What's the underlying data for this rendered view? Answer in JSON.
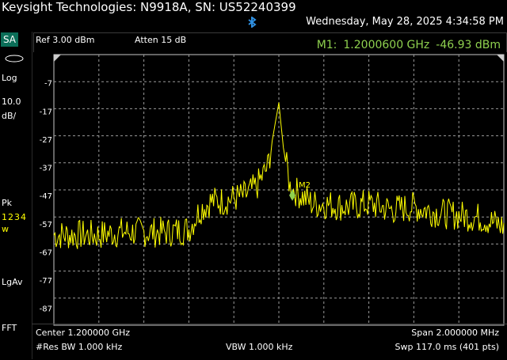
{
  "window": {
    "title": "Keysight Technologies: N9918A, SN: US52240399",
    "datetime": "Wednesday, May 28, 2025 4:34:58 PM"
  },
  "sidebar": {
    "mode": "SA",
    "scale_type": "Log",
    "scale_value": "10.0",
    "scale_unit": "dB/",
    "detector": "Pk",
    "trace_numbers": "1234",
    "trace_state": "w",
    "averaging": "LgAv",
    "sweep_mode": "FFT"
  },
  "status": {
    "ref_level": "Ref 3.00 dBm",
    "attenuation": "Atten 15 dB"
  },
  "marker": {
    "label": "M1:",
    "frequency": "1.2000600 GHz",
    "amplitude": "-46.93 dBm",
    "freq_ghz": 1.20006,
    "amp_dbm": -46.93,
    "tag": "M2"
  },
  "footer": {
    "center": "Center 1.200000 GHz",
    "span": "Span 2.000000 MHz",
    "rbw": "#Res BW 1.000 kHz",
    "vbw": "VBW 1.000 kHz",
    "sweep": "Swp 117.0 ms (401 pts)"
  },
  "colors": {
    "trace": "#ffff00",
    "marker": "#8fd14f",
    "grid": "#9a9a9a",
    "mode_badge": "#0b6e58"
  },
  "chart_data": {
    "type": "line",
    "x_label": "",
    "y_label": "",
    "ylim": [
      -93,
      3
    ],
    "y_ticks": [
      "-7",
      "-17",
      "-27",
      "-37",
      "-47",
      "-57",
      "-67",
      "-77",
      "-87"
    ],
    "y_tick_values": [
      -7,
      -17,
      -27,
      -37,
      -47,
      -57,
      -67,
      -77,
      -87
    ],
    "xlim_ghz": [
      1.199,
      1.201
    ],
    "series": [
      {
        "x_ghz": [
          1.199,
          1.1991,
          1.1992,
          1.1993,
          1.1994,
          1.1995,
          1.1996,
          1.19965,
          1.1997,
          1.19975,
          1.1998,
          1.19985,
          1.1999,
          1.19995,
          1.2,
          1.20002,
          1.20005,
          1.2001,
          1.20015,
          1.2002,
          1.2003,
          1.2004,
          1.2005,
          1.2006,
          1.2007,
          1.2008,
          1.2009,
          1.201
        ],
        "values": [
          -61,
          -61,
          -61,
          -60,
          -60,
          -60,
          -59,
          -52,
          -49,
          -49,
          -48,
          -47,
          -44,
          -37,
          -14,
          -30,
          -44,
          -47,
          -50,
          -50,
          -51,
          -50,
          -52,
          -51,
          -53,
          -54,
          -55,
          -58
        ]
      }
    ]
  }
}
